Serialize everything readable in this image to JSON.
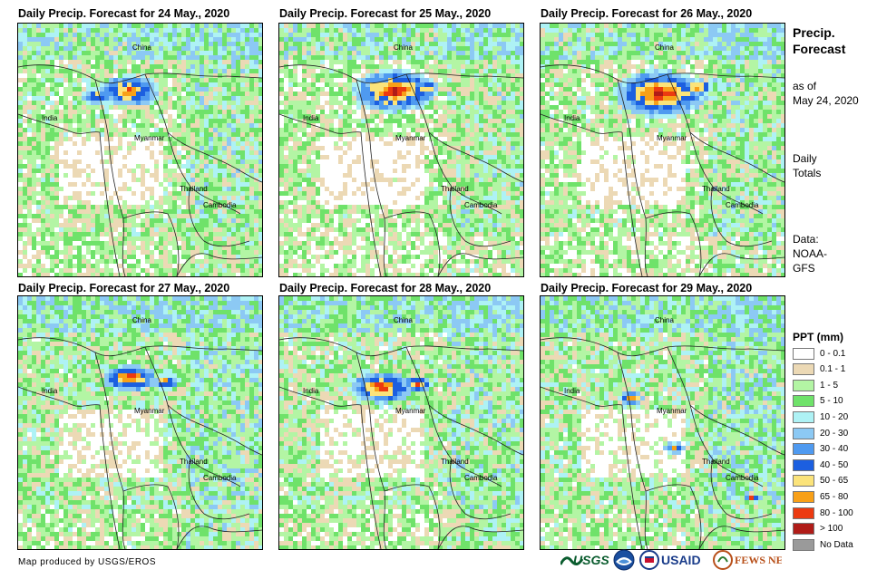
{
  "panels": [
    {
      "title": "Daily Precip. Forecast for 24 May., 2020"
    },
    {
      "title": "Daily Precip. Forecast for 25 May., 2020"
    },
    {
      "title": "Daily Precip. Forecast for 26 May., 2020"
    },
    {
      "title": "Daily Precip. Forecast for 27 May., 2020"
    },
    {
      "title": "Daily Precip. Forecast for 28 May., 2020"
    },
    {
      "title": "Daily Precip. Forecast for 29 May., 2020"
    }
  ],
  "map_labels": {
    "china": "China",
    "india": "India",
    "myanmar": "Myanmar",
    "thailand": "Thailand",
    "cambodia": "Cambodia"
  },
  "sidebar": {
    "title_line1": "Precip.",
    "title_line2": "Forecast",
    "asof_line1": "as of",
    "asof_line2": "May 24, 2020",
    "totals_line1": "Daily",
    "totals_line2": "Totals",
    "data_line1": "Data:",
    "data_line2": "NOAA-",
    "data_line3": "GFS"
  },
  "legend": {
    "title": "PPT (mm)",
    "items": [
      {
        "label": "0 - 0.1",
        "color": "#ffffff"
      },
      {
        "label": "0.1 - 1",
        "color": "#ecd9b5"
      },
      {
        "label": "1 - 5",
        "color": "#b3f5a4"
      },
      {
        "label": "5 - 10",
        "color": "#6fe26a"
      },
      {
        "label": "10 - 20",
        "color": "#aef2f5"
      },
      {
        "label": "20 - 30",
        "color": "#8cc9f4"
      },
      {
        "label": "30 - 40",
        "color": "#4f9af0"
      },
      {
        "label": "40 - 50",
        "color": "#1c5fe0"
      },
      {
        "label": "50 - 65",
        "color": "#fbe37a"
      },
      {
        "label": "65 - 80",
        "color": "#f8a018"
      },
      {
        "label": "80 - 100",
        "color": "#ec3a10"
      },
      {
        "label": "> 100",
        "color": "#b01c18"
      },
      {
        "label": "No Data",
        "color": "#9a9a9a"
      }
    ]
  },
  "credit": "Map produced by USGS/EROS",
  "logos": {
    "usgs": "USGS",
    "usaid": "USAID",
    "fewsnet": "FEWS NET"
  }
}
